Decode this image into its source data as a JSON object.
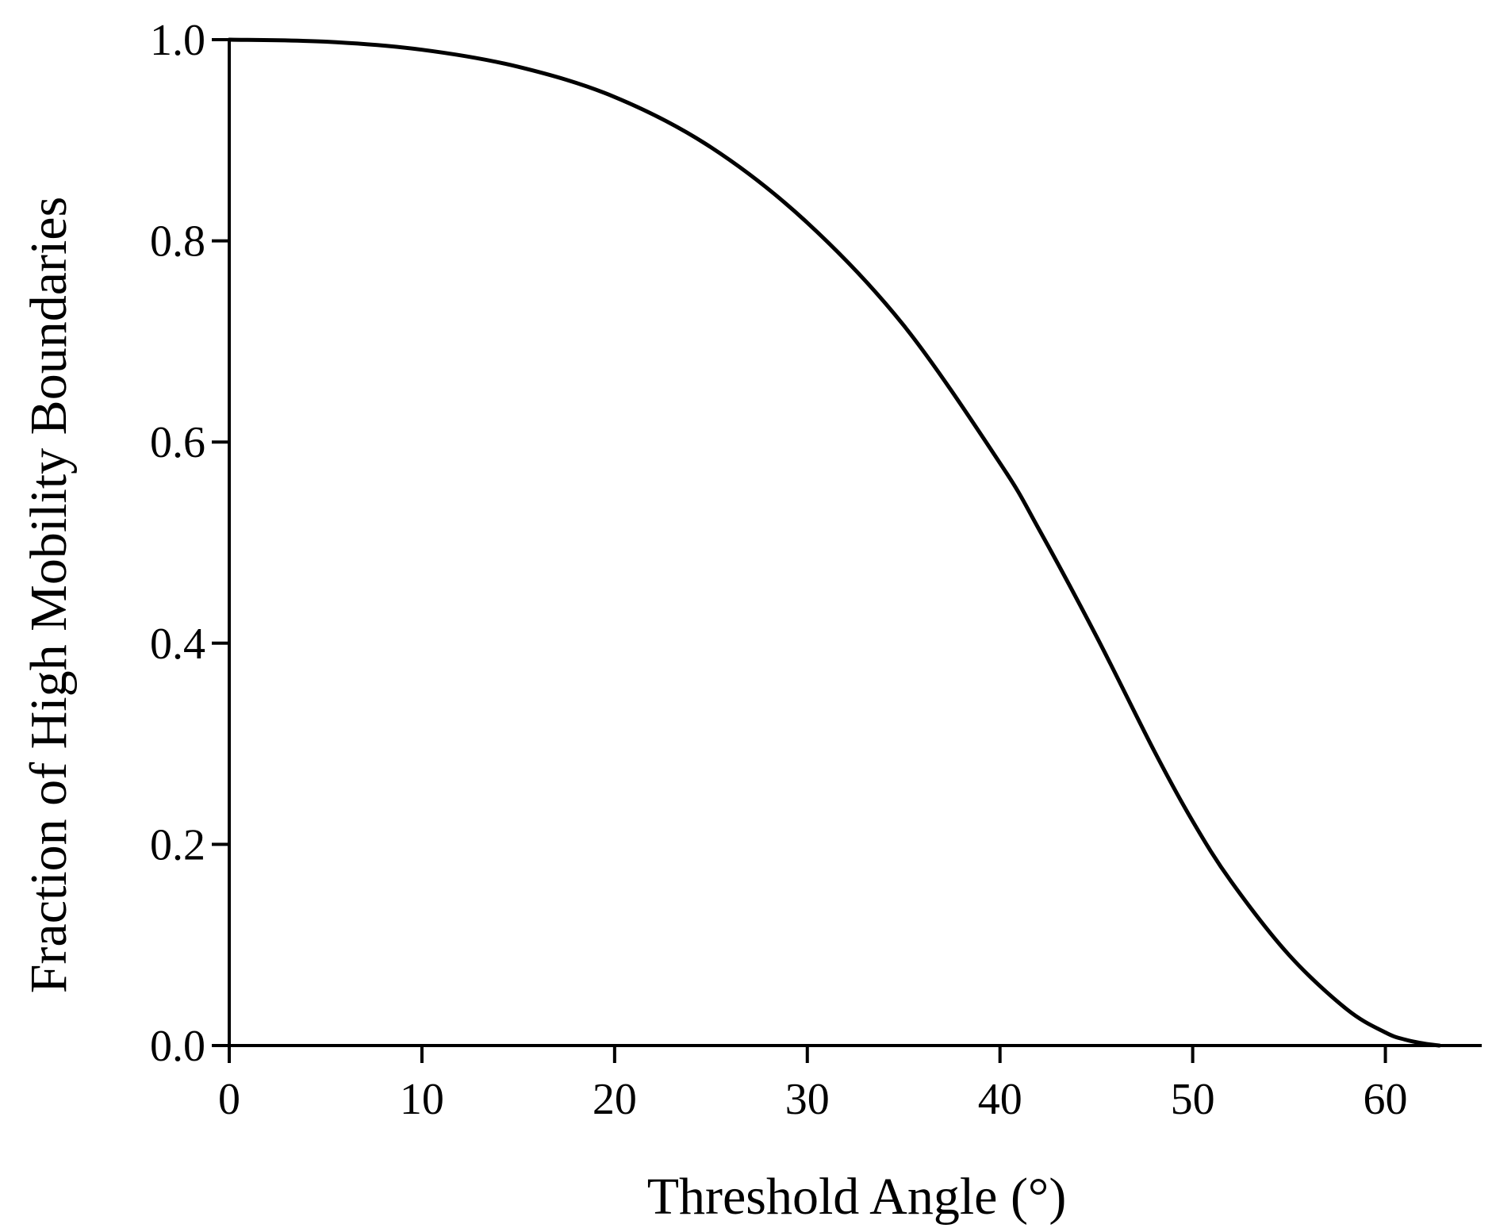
{
  "chart_data": {
    "type": "line",
    "title": "",
    "xlabel": "Threshold Angle (°)",
    "ylabel": "Fraction of High Mobility Boundaries",
    "xlim": [
      0,
      65
    ],
    "ylim": [
      0,
      1.0
    ],
    "xticks": [
      0,
      10,
      20,
      30,
      40,
      50,
      60
    ],
    "xtick_labels": [
      "0",
      "10",
      "20",
      "30",
      "40",
      "50",
      "60"
    ],
    "yticks": [
      0.0,
      0.2,
      0.4,
      0.6,
      0.8,
      1.0
    ],
    "ytick_labels": [
      "0.0",
      "0.2",
      "0.4",
      "0.6",
      "0.8",
      "1.0"
    ],
    "grid": false,
    "line_color": "#000000",
    "series": [
      {
        "x": [
          0,
          5,
          10,
          15,
          20,
          25,
          30,
          35,
          40,
          42,
          45,
          48,
          50,
          52,
          55,
          58,
          60,
          61,
          62,
          62.8
        ],
        "values": [
          1.0,
          0.998,
          0.99,
          0.973,
          0.943,
          0.893,
          0.818,
          0.716,
          0.579,
          0.514,
          0.407,
          0.293,
          0.223,
          0.163,
          0.09,
          0.036,
          0.013,
          0.006,
          0.002,
          0.0
        ]
      }
    ]
  }
}
